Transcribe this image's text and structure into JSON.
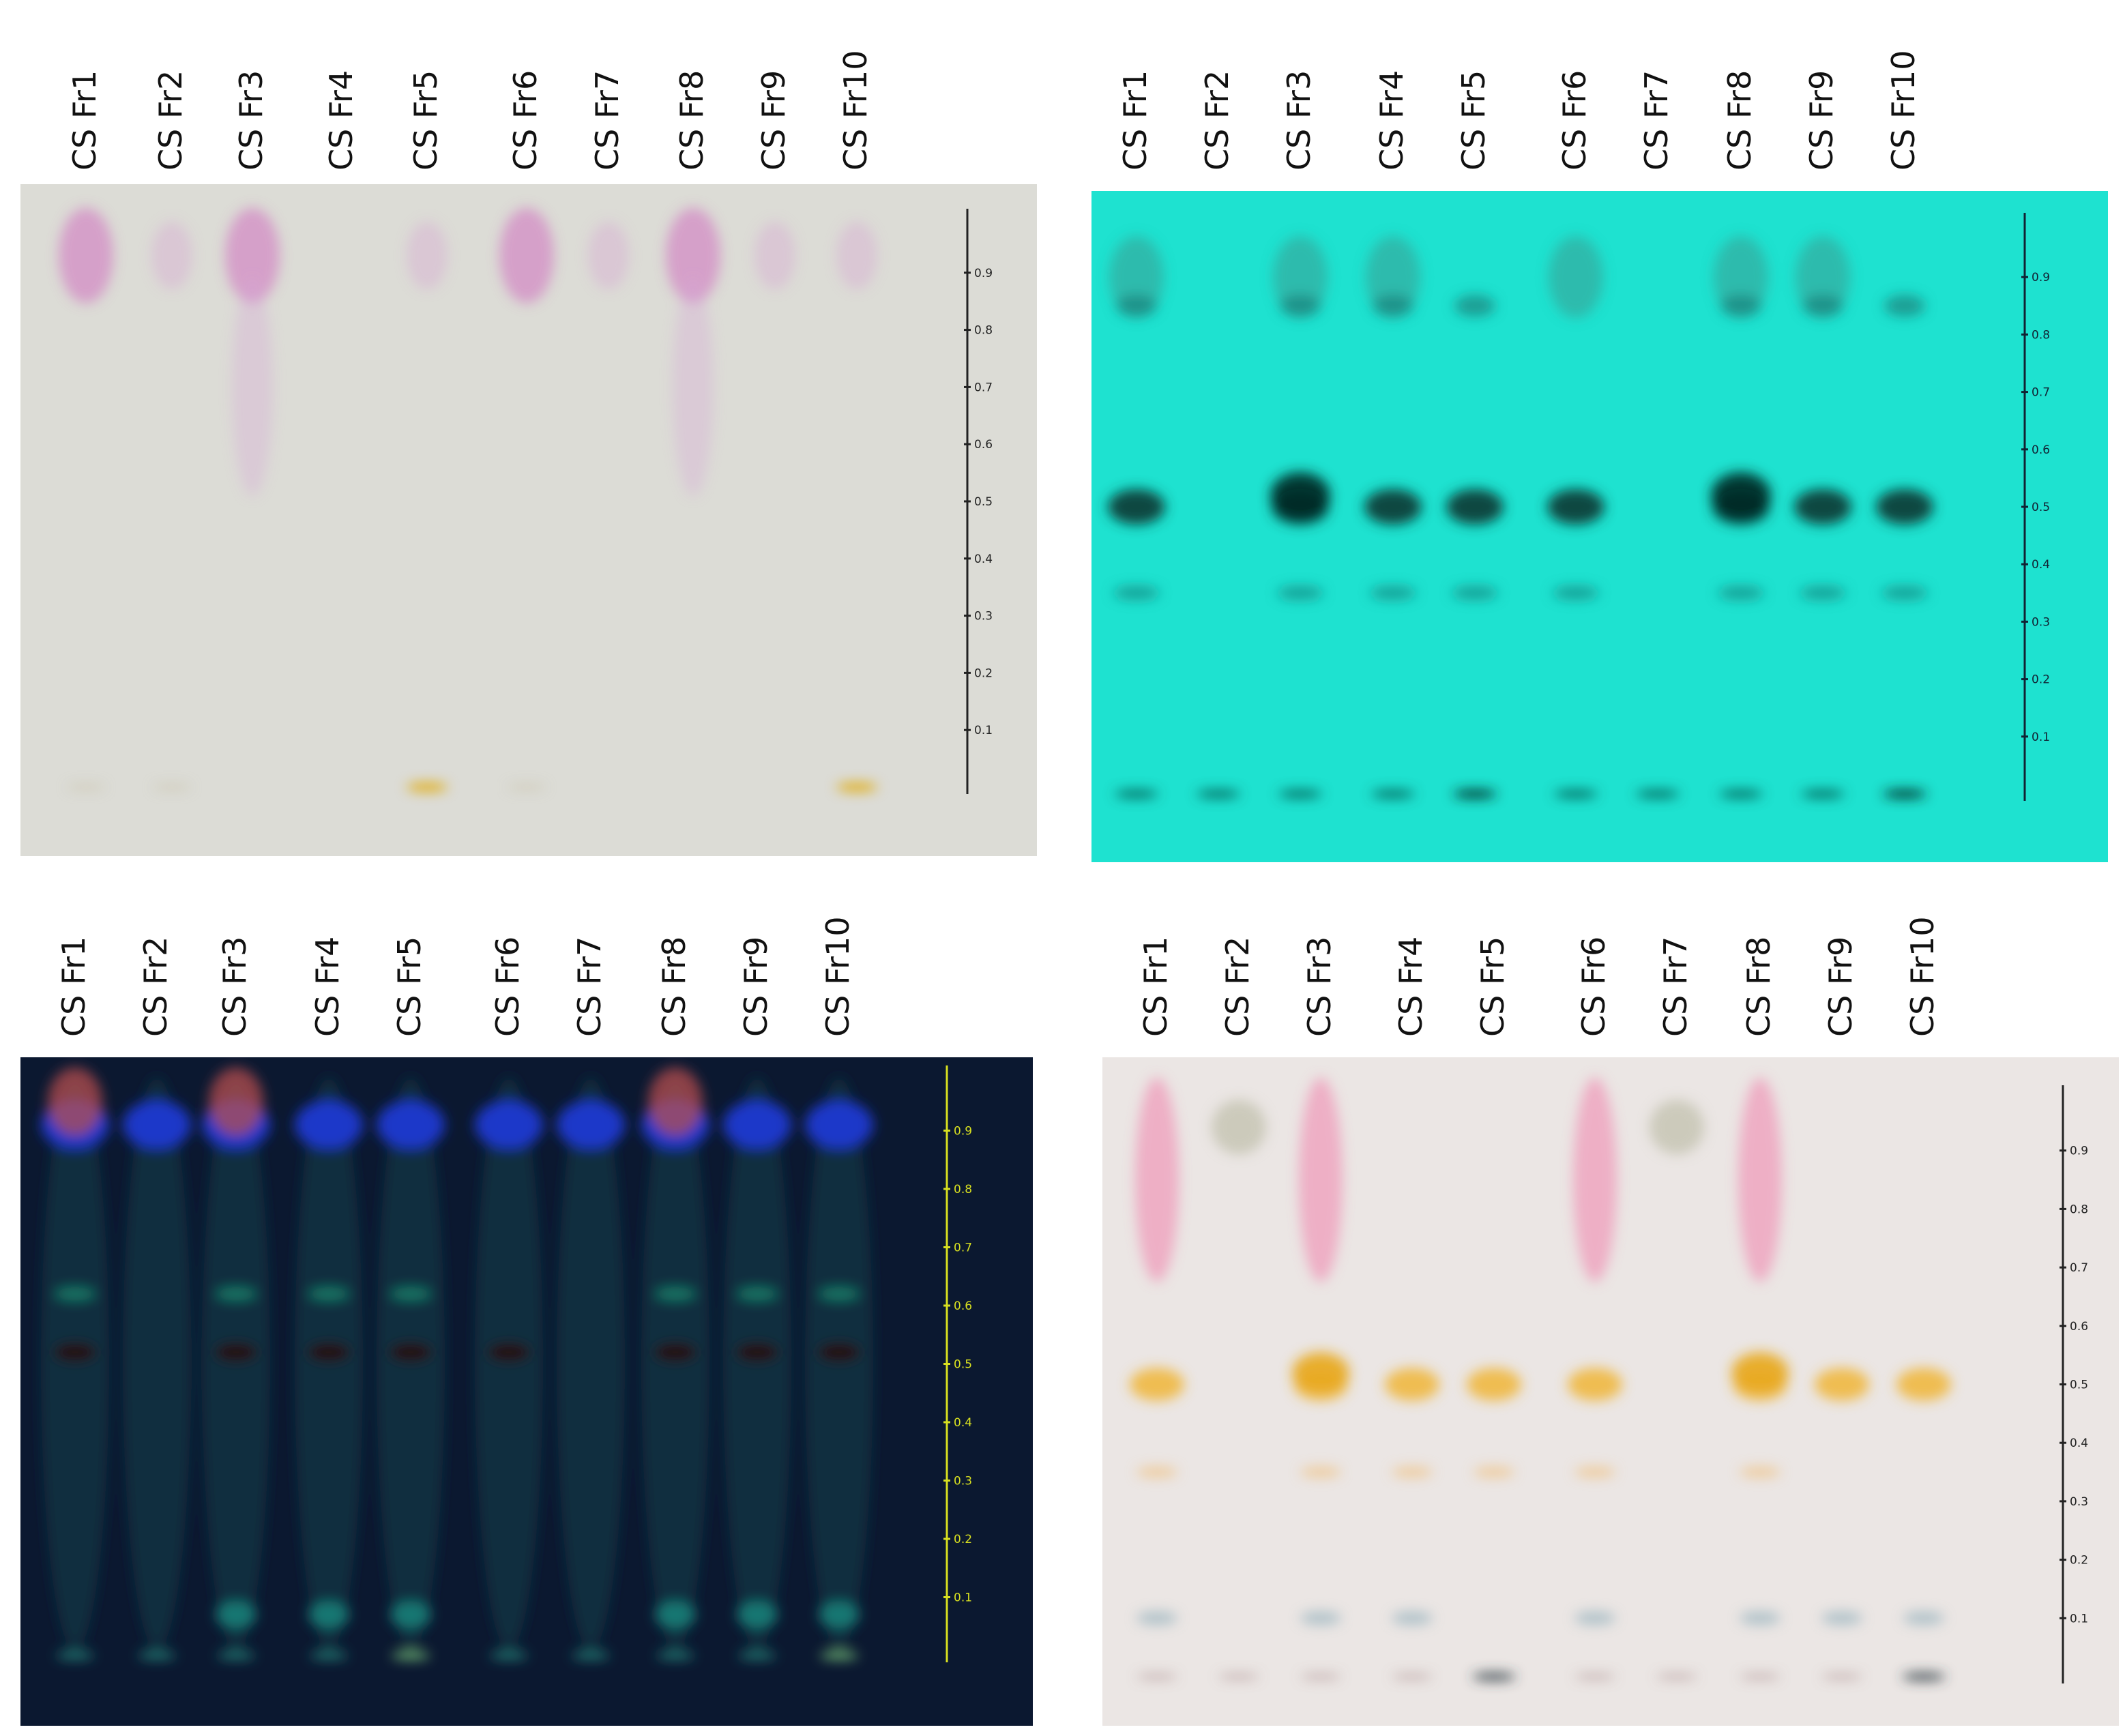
{
  "panels": [
    {
      "lanes": [
        "CS Fr1",
        "CS Fr2",
        "CS Fr3",
        "CS Fr4",
        "CS Fr5",
        "CS Fr6",
        "CS Fr7",
        "CS Fr8",
        "CS Fr9",
        "CS Fr10"
      ],
      "rf_ticks": [
        "0.9",
        "0.8",
        "0.7",
        "0.6",
        "0.5",
        "0.4",
        "0.3",
        "0.2",
        "0.1"
      ]
    },
    {
      "lanes": [
        "CS Fr1",
        "CS Fr2",
        "CS Fr3",
        "CS Fr4",
        "CS Fr5",
        "CS Fr6",
        "CS Fr7",
        "CS Fr8",
        "CS Fr9",
        "CS Fr10"
      ],
      "rf_ticks": [
        "0.9",
        "0.8",
        "0.7",
        "0.6",
        "0.5",
        "0.4",
        "0.3",
        "0.2",
        "0.1"
      ]
    },
    {
      "lanes": [
        "CS Fr1",
        "CS Fr2",
        "CS Fr3",
        "CS Fr4",
        "CS Fr5",
        "CS Fr6",
        "CS Fr7",
        "CS Fr8",
        "CS Fr9",
        "CS Fr10"
      ],
      "rf_ticks": [
        "0.9",
        "0.8",
        "0.7",
        "0.6",
        "0.5",
        "0.4",
        "0.3",
        "0.2",
        "0.1"
      ]
    },
    {
      "lanes": [
        "CS Fr1",
        "CS Fr2",
        "CS Fr3",
        "CS Fr4",
        "CS Fr5",
        "CS Fr6",
        "CS Fr7",
        "CS Fr8",
        "CS Fr9",
        "CS Fr10"
      ],
      "rf_ticks": [
        "0.9",
        "0.8",
        "0.7",
        "0.6",
        "0.5",
        "0.4",
        "0.3",
        "0.2",
        "0.1"
      ]
    }
  ]
}
